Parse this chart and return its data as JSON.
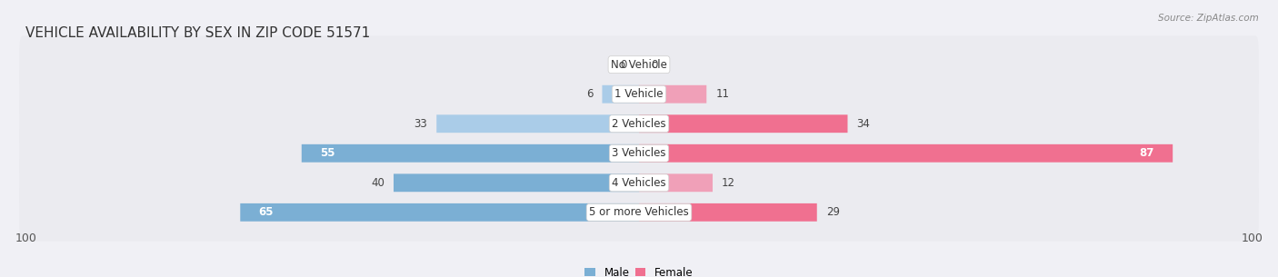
{
  "title": "VEHICLE AVAILABILITY BY SEX IN ZIP CODE 51571",
  "source": "Source: ZipAtlas.com",
  "categories": [
    "No Vehicle",
    "1 Vehicle",
    "2 Vehicles",
    "3 Vehicles",
    "4 Vehicles",
    "5 or more Vehicles"
  ],
  "male_values": [
    0,
    6,
    33,
    55,
    40,
    65
  ],
  "female_values": [
    0,
    11,
    34,
    87,
    12,
    29
  ],
  "male_color": "#7bafd4",
  "female_color": "#f07090",
  "male_color_light": "#aacce8",
  "female_color_light": "#f0a0b8",
  "row_bg_color": "#ebebf0",
  "x_max": 100,
  "title_fontsize": 11,
  "label_fontsize": 8.5,
  "value_fontsize": 8.5,
  "axis_label_fontsize": 9,
  "source_fontsize": 7.5
}
